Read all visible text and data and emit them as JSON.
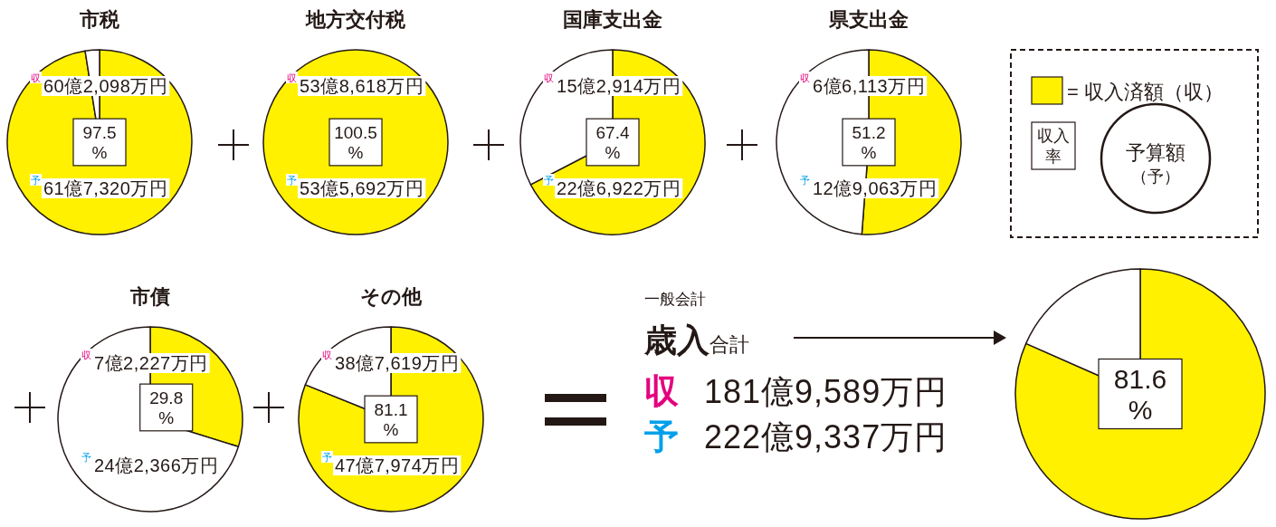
{
  "chart_data": [
    {
      "type": "pie",
      "title": "市税",
      "categories": [
        null,
        null
      ],
      "values": [
        97.5,
        2.5
      ],
      "colors": [
        "#fff100",
        "#ffffff"
      ],
      "value_labels": [
        "97.5 %",
        null
      ],
      "annotations": [
        "収60億2,098万円",
        "予61億7,320万円"
      ]
    },
    {
      "type": "pie",
      "title": "地方交付税",
      "categories": [
        null
      ],
      "values": [
        100.5
      ],
      "colors": [
        "#fff100"
      ],
      "value_labels": [
        "100.5 %"
      ],
      "annotations": [
        "収53億8,618万円",
        "予53億5,692万円"
      ]
    },
    {
      "type": "pie",
      "title": "国庫支出金",
      "categories": [
        null,
        null
      ],
      "values": [
        67.4,
        32.6
      ],
      "colors": [
        "#fff100",
        "#ffffff"
      ],
      "value_labels": [
        "67.4 %",
        null
      ],
      "annotations": [
        "収15億2,914万円",
        "予22億6,922万円"
      ]
    },
    {
      "type": "pie",
      "title": "県支出金",
      "categories": [
        null,
        null
      ],
      "values": [
        51.2,
        48.8
      ],
      "colors": [
        "#fff100",
        "#ffffff"
      ],
      "value_labels": [
        "51.2 %",
        null
      ],
      "annotations": [
        "収6億6,113万円",
        "予12億9,063万円"
      ]
    },
    {
      "type": "other",
      "annotations": [
        "= 収入済額（収）",
        "収入",
        "率",
        "予算額",
        "（予）"
      ]
    },
    {
      "type": "pie",
      "title": "市債",
      "categories": [
        null,
        null
      ],
      "values": [
        29.8,
        70.2
      ],
      "colors": [
        "#fff100",
        "#ffffff"
      ],
      "value_labels": [
        "29.8 %",
        null
      ],
      "annotations": [
        "収7億2,227万円",
        "予24億2,366万円"
      ]
    },
    {
      "type": "pie",
      "title": "その他",
      "categories": [
        null,
        null
      ],
      "values": [
        81.1,
        18.9
      ],
      "colors": [
        "#fff100",
        "#ffffff"
      ],
      "value_labels": [
        "81.1 %",
        null
      ],
      "annotations": [
        "収38億7,619万円",
        "予47億7,974万円"
      ]
    },
    {
      "type": "other",
      "subtitle": "一般会計",
      "title": "歳入合計",
      "annotations": [
        "収 181億9,589万円",
        "予 222億9,337万円"
      ]
    },
    {
      "type": "pie",
      "categories": [
        null,
        null
      ],
      "values": [
        81.6,
        18.4
      ],
      "colors": [
        "#fff100",
        "#ffffff"
      ],
      "value_labels": [
        "81.6 %",
        null
      ]
    }
  ]
}
